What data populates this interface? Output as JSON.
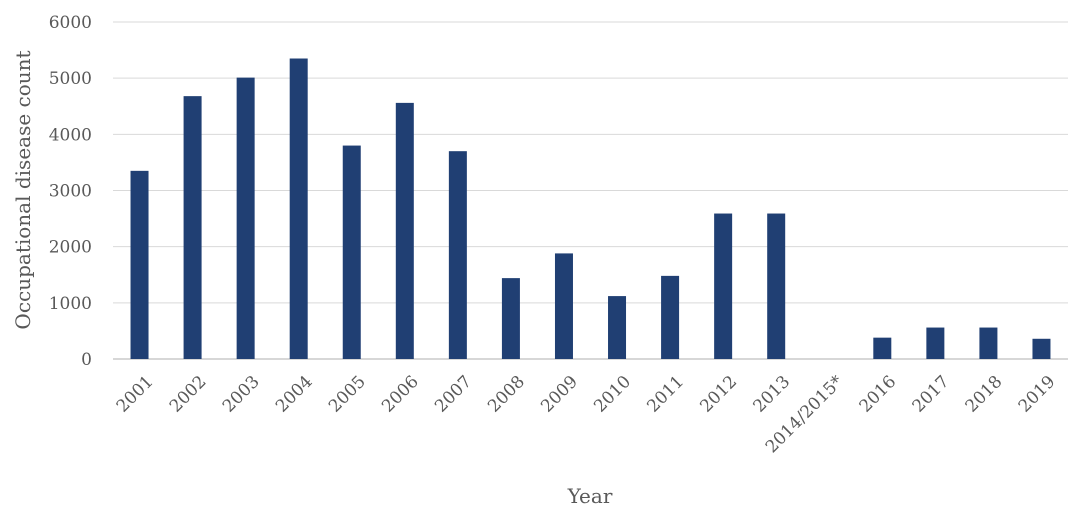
{
  "chart_data": {
    "type": "bar",
    "title": "",
    "xlabel": "Year",
    "ylabel": "Occupational disease count",
    "ylim": [
      0,
      6000
    ],
    "yticks": [
      0,
      1000,
      2000,
      3000,
      4000,
      5000,
      6000
    ],
    "grid": true,
    "legend": "none",
    "bar_color": "#203f73",
    "categories": [
      "2001",
      "2002",
      "2003",
      "2004",
      "2005",
      "2006",
      "2007",
      "2008",
      "2009",
      "2010",
      "2011",
      "2012",
      "2013",
      "2014/2015*",
      "2016",
      "2017",
      "2018",
      "2019"
    ],
    "values": [
      3350,
      4680,
      5010,
      5350,
      3800,
      4560,
      3700,
      1440,
      1880,
      1120,
      1480,
      2590,
      2590,
      null,
      380,
      560,
      560,
      360
    ]
  }
}
